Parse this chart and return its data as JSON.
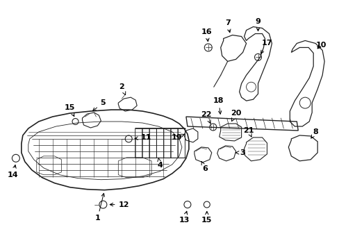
{
  "background_color": "#ffffff",
  "line_color": "#222222",
  "text_color": "#000000",
  "figsize": [
    4.89,
    3.6
  ],
  "dpi": 100,
  "xlim": [
    0,
    489
  ],
  "ylim": [
    0,
    360
  ]
}
